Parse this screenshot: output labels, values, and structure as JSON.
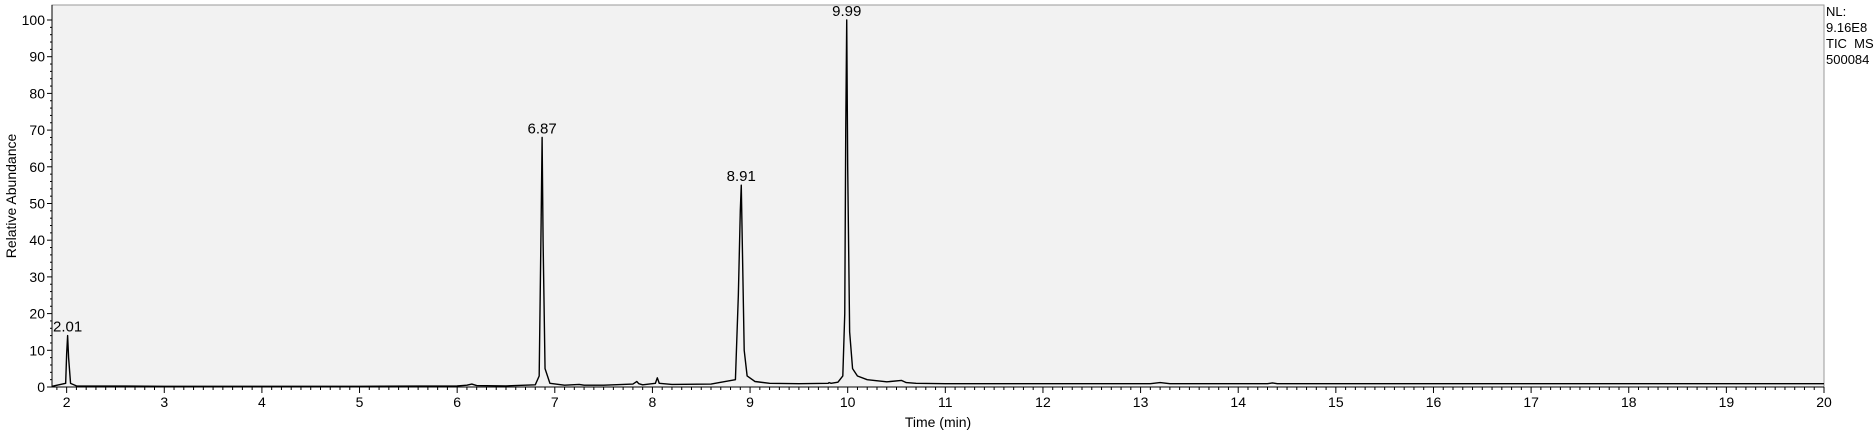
{
  "chart_data": {
    "type": "line",
    "title": "",
    "xlabel": "Time (min)",
    "ylabel": "Relative Abundance",
    "xlim": [
      1.85,
      20
    ],
    "ylim": [
      0,
      100
    ],
    "x_ticks": [
      2,
      3,
      4,
      5,
      6,
      7,
      8,
      9,
      10,
      11,
      12,
      13,
      14,
      15,
      16,
      17,
      18,
      19,
      20
    ],
    "y_ticks": [
      0,
      10,
      20,
      30,
      40,
      50,
      60,
      70,
      80,
      90,
      100
    ],
    "grid": false,
    "legend": "none",
    "plot_background": "#f2f2f2",
    "line_color": "#000000",
    "info_text": [
      "NL:",
      "9.16E8",
      "TIC  MS",
      "500084"
    ],
    "peaks": [
      {
        "label": "2.01",
        "x": 2.01,
        "y": 14
      },
      {
        "label": "6.87",
        "x": 6.87,
        "y": 68
      },
      {
        "label": "8.91",
        "x": 8.91,
        "y": 55
      },
      {
        "label": "9.99",
        "x": 9.99,
        "y": 100
      }
    ],
    "series": [
      {
        "x": [
          1.85,
          1.99,
          2.0,
          2.01,
          2.02,
          2.04,
          2.1,
          3.0,
          4.0,
          5.0,
          6.0,
          6.1,
          6.15,
          6.2,
          6.5,
          6.8,
          6.84,
          6.86,
          6.87,
          6.88,
          6.9,
          6.95,
          7.1,
          7.25,
          7.3,
          7.5,
          7.8,
          7.84,
          7.86,
          7.9,
          8.03,
          8.05,
          8.07,
          8.2,
          8.6,
          8.85,
          8.88,
          8.9,
          8.91,
          8.92,
          8.94,
          8.97,
          9.05,
          9.2,
          9.5,
          9.8,
          9.81,
          9.83,
          9.9,
          9.95,
          9.97,
          9.98,
          9.99,
          10.0,
          10.02,
          10.05,
          10.1,
          10.2,
          10.4,
          10.55,
          10.6,
          10.7,
          11.0,
          12.0,
          13.1,
          13.2,
          13.3,
          14.3,
          14.35,
          14.4,
          15.0,
          16.0,
          17.0,
          18.0,
          19.0,
          20.0
        ],
        "y": [
          0.2,
          1.0,
          9.0,
          14.0,
          8.0,
          1.0,
          0.3,
          0.2,
          0.2,
          0.2,
          0.3,
          0.5,
          0.8,
          0.4,
          0.3,
          0.6,
          3.0,
          45.0,
          68.0,
          40.0,
          5.0,
          1.0,
          0.5,
          0.7,
          0.5,
          0.5,
          0.8,
          1.5,
          0.9,
          0.6,
          1.0,
          2.5,
          1.0,
          0.7,
          0.8,
          2.0,
          25.0,
          48.0,
          55.0,
          40.0,
          10.0,
          3.0,
          1.5,
          1.0,
          0.9,
          1.0,
          1.2,
          1.0,
          1.3,
          3.0,
          20.0,
          70.0,
          100.0,
          60.0,
          15.0,
          5.0,
          3.0,
          2.0,
          1.4,
          1.8,
          1.2,
          1.0,
          0.9,
          0.9,
          0.9,
          1.2,
          0.9,
          0.9,
          1.1,
          0.9,
          0.9,
          0.9,
          0.9,
          0.9,
          0.9,
          0.9
        ]
      }
    ]
  }
}
